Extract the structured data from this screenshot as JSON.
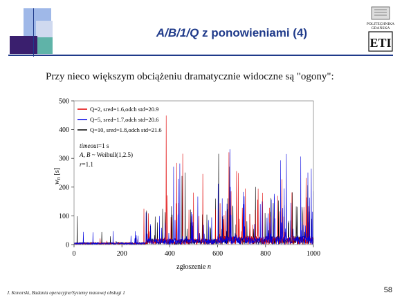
{
  "slide": {
    "title": {
      "part1": "A/B/1/Q",
      "part2": " z ponowieniami (4)"
    },
    "subtitle": "Przy nieco większym obciążeniu dramatycznie widoczne są \"ogony\":",
    "footer": "J. Konorski, Badania operacyjne/Systemy masowej obsługi 1",
    "page_number": "58",
    "logo": {
      "text1": "POLITECHNIKA",
      "text2": "GDAŃSKA",
      "mark": "ETI"
    },
    "colors": {
      "title": "#1f3a8a",
      "rule": "#1f3a8a"
    }
  },
  "chart_data": {
    "type": "line",
    "xlabel": "zgłoszenie",
    "xlabel_var": "n",
    "ylabel": "w",
    "ylabel_sub": "n",
    "ylabel_unit": "[s]",
    "xlim": [
      0,
      1000
    ],
    "ylim": [
      0,
      500
    ],
    "xticks": [
      0,
      200,
      400,
      600,
      800,
      1000
    ],
    "yticks": [
      0,
      100,
      200,
      300,
      400,
      500
    ],
    "grid": false,
    "legend_position": "top-left",
    "series": [
      {
        "name": "Q=2, sred=1.6,odch std=20.9",
        "color": "#e00000",
        "mean": 1.6,
        "std": 20.9
      },
      {
        "name": "Q=5, sred=1.7,odch std=20.6",
        "color": "#0000e0",
        "mean": 1.7,
        "std": 20.6
      },
      {
        "name": "Q=10, sred=1.8,odch std=21.6",
        "color": "#000000",
        "mean": 1.8,
        "std": 21.6
      }
    ],
    "annotations": {
      "line1_var": "timeout",
      "line1_rest": "=1 s",
      "line2_var1": "A",
      "line2_mid": ", ",
      "line2_var2": "B",
      "line2_rest": " ~ Weibull(1,2.5)",
      "line3_var": "r",
      "line3_rest": "=1.1"
    }
  }
}
